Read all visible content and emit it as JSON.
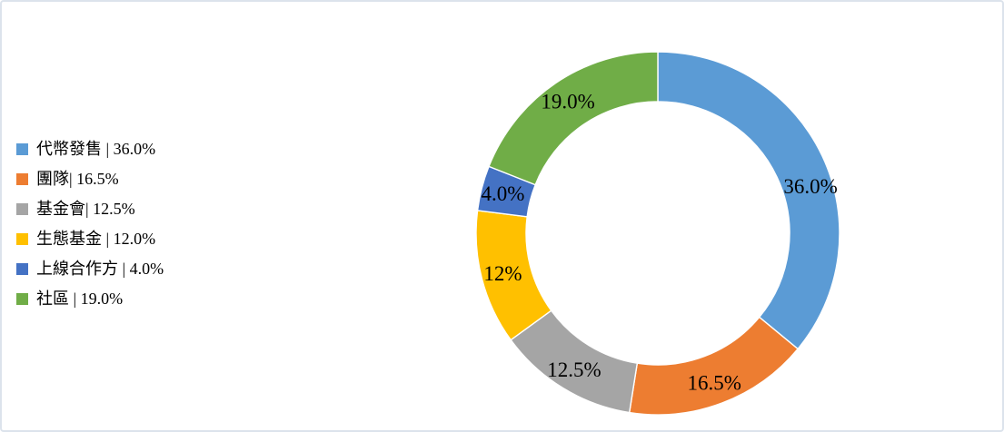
{
  "panel": {
    "background_color": "#ffffff",
    "border_color": "#dce3ec"
  },
  "legend": {
    "position": "left",
    "items": [
      {
        "label": "代幣發售 | 36.0%",
        "color": "#5B9BD5"
      },
      {
        "label": "團隊| 16.5%",
        "color": "#ED7D31"
      },
      {
        "label": "基金會| 12.5%",
        "color": "#A5A5A5"
      },
      {
        "label": "生態基金 | 12.0%",
        "color": "#FFC000"
      },
      {
        "label": "上線合作方 | 4.0%",
        "color": "#4472C4"
      },
      {
        "label": "社區 | 19.0%",
        "color": "#70AD47"
      }
    ]
  },
  "chart_data": {
    "type": "pie",
    "subtype": "donut",
    "title": "",
    "categories": [
      "代幣發售",
      "團隊",
      "基金會",
      "生態基金",
      "上線合作方",
      "社區"
    ],
    "values": [
      36.0,
      16.5,
      12.5,
      12.0,
      4.0,
      19.0
    ],
    "data_labels": [
      "36.0%",
      "16.5%",
      "12.5%",
      "12%",
      "4.0%",
      "19.0%"
    ],
    "colors": [
      "#5B9BD5",
      "#ED7D31",
      "#A5A5A5",
      "#FFC000",
      "#4472C4",
      "#70AD47"
    ],
    "start_angle_deg": 0,
    "direction": "clockwise",
    "hole_ratio": 0.72,
    "separator_color": "#ffffff",
    "label_color": "#000000",
    "legend_position": "left"
  }
}
